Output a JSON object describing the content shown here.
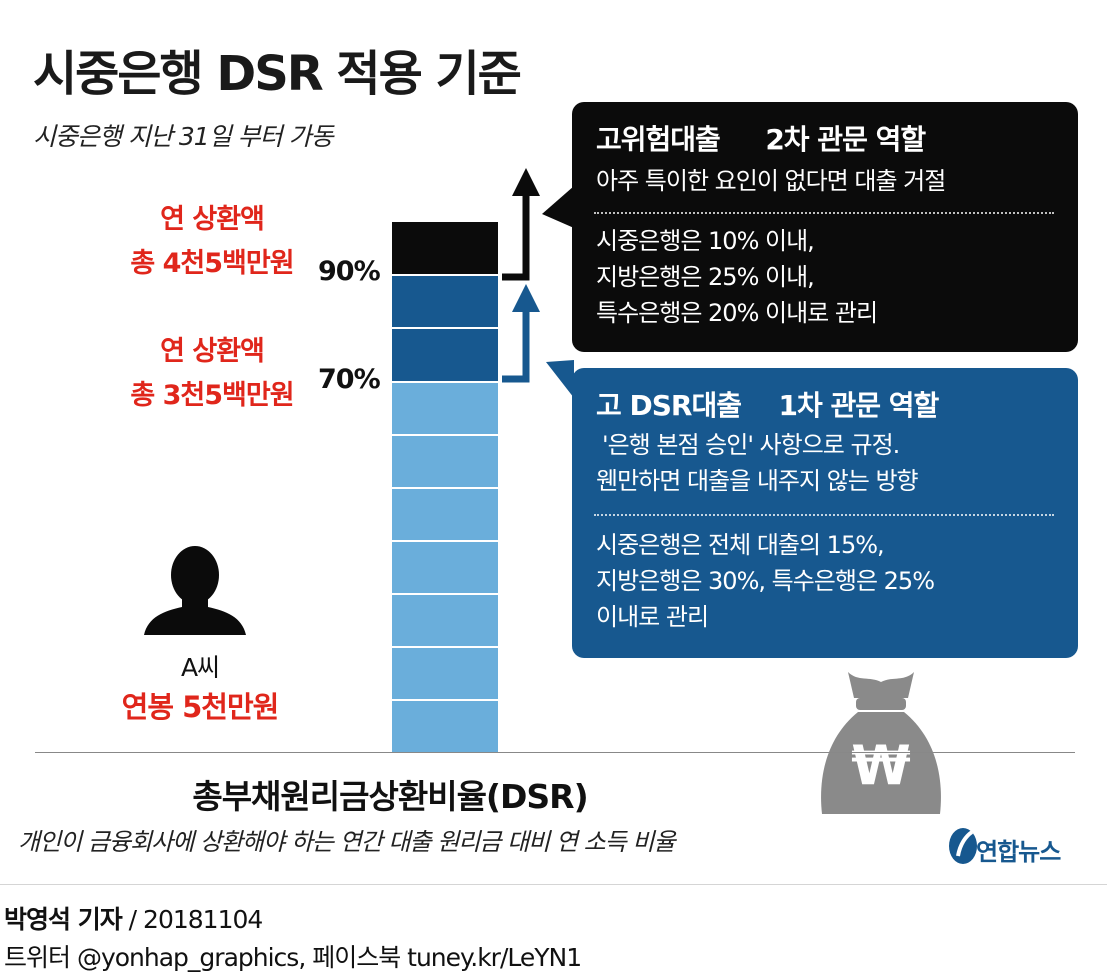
{
  "header": {
    "title": "시중은행 DSR 적용 기준",
    "subtitle": "시중은행 지난 31일 부터 가동"
  },
  "left_labels": {
    "upper_line1": "연 상환액",
    "upper_line2": "총 4천5백만원",
    "upper_pct": "90%",
    "lower_line1": "연 상환액",
    "lower_line2": "총 3천5백만원",
    "lower_pct": "70%"
  },
  "person": {
    "name": "A씨",
    "salary": "연봉 5천만원"
  },
  "bar": {
    "levels_percent": [
      90,
      70
    ],
    "colors": {
      "high": "#0b0b0b",
      "mid": "#17588f",
      "base": "#6aaedb"
    }
  },
  "callout_high": {
    "head_left": "고위험대출",
    "head_right": "2차 관문 역할",
    "line1": "아주 특이한 요인이 없다면 대출 거절",
    "line2": "시중은행은 10% 이내,",
    "line3": "지방은행은 25% 이내,",
    "line4": "특수은행은 20% 이내로 관리"
  },
  "callout_mid": {
    "head_left": "고 DSR대출",
    "head_right": "1차 관문 역할",
    "line1": "'은행 본점 승인' 사항으로 규정.",
    "line2": "웬만하면 대출을 내주지 않는 방향",
    "line3": "시중은행은 전체 대출의 15%,",
    "line4": "지방은행은 30%, 특수은행은 25%",
    "line5": "이내로 관리"
  },
  "dsr": {
    "title": "총부채원리금상환비율(DSR)",
    "description": "개인이 금융회사에 상환해야 하는 연간 대출 원리금 대비 연 소득 비율"
  },
  "logo": {
    "text": "연합뉴스",
    "icon": "yonhap-logo-icon"
  },
  "money_bag": {
    "symbol": "₩",
    "icon": "money-bag-icon"
  },
  "footer": {
    "reporter": "박영석 기자",
    "date": " / 20181104",
    "social": "트위터 @yonhap_graphics, 페이스북 tuney.kr/LeYN1"
  }
}
